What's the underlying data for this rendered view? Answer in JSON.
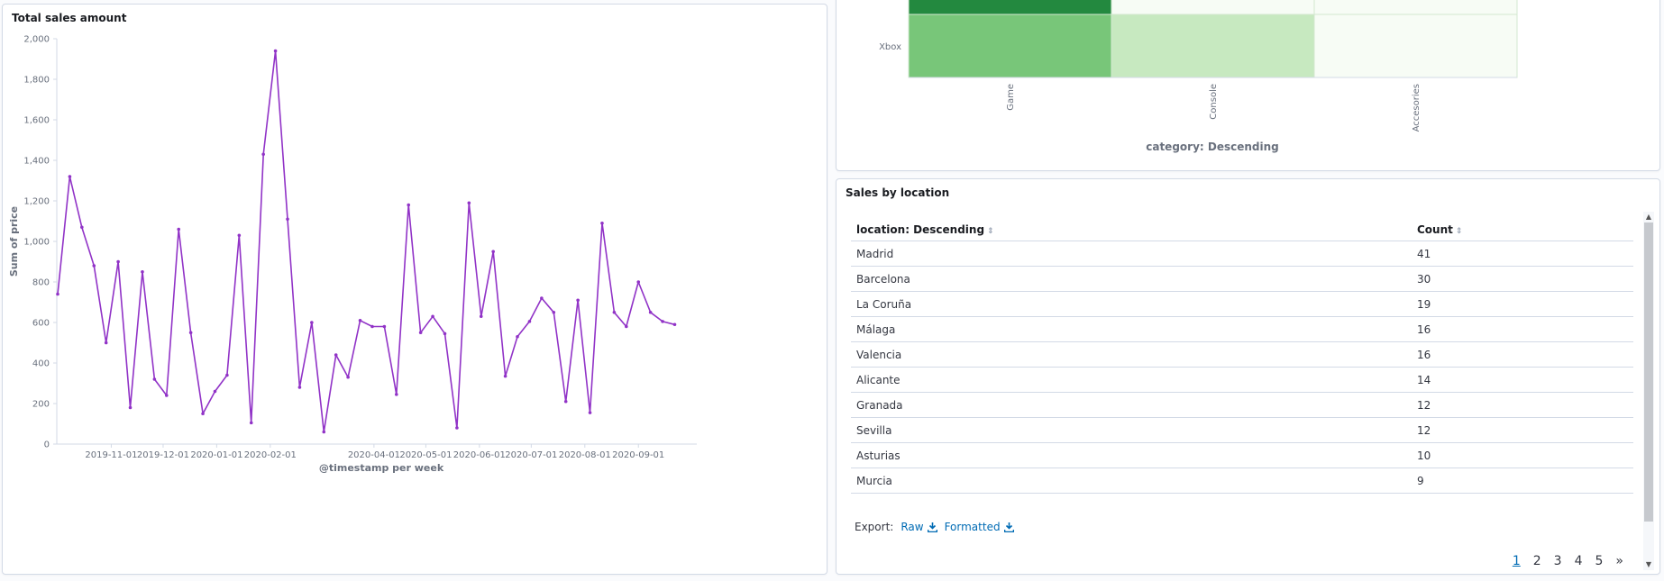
{
  "line_panel": {
    "title": "Total sales amount",
    "color": "#9133c7"
  },
  "heat_panel": {
    "row_label": "Xbox",
    "columns": [
      "Game",
      "Console",
      "Accesories"
    ],
    "axis_title": "category: Descending",
    "colors": {
      "dark": "#23893f",
      "mid": "#78c679",
      "light": "#c7e9c0",
      "lightest": "#f7fcf5"
    }
  },
  "table_panel": {
    "title": "Sales by location",
    "headers": {
      "location": "location: Descending",
      "count": "Count"
    },
    "rows": [
      {
        "location": "Madrid",
        "count": "41"
      },
      {
        "location": "Barcelona",
        "count": "30"
      },
      {
        "location": "La Coruña",
        "count": "19"
      },
      {
        "location": "Málaga",
        "count": "16"
      },
      {
        "location": "Valencia",
        "count": "16"
      },
      {
        "location": "Alicante",
        "count": "14"
      },
      {
        "location": "Granada",
        "count": "12"
      },
      {
        "location": "Sevilla",
        "count": "12"
      },
      {
        "location": "Asturias",
        "count": "10"
      },
      {
        "location": "Murcia",
        "count": "9"
      }
    ],
    "export_label": "Export:",
    "export_raw": "Raw",
    "export_formatted": "Formatted",
    "pages": [
      "1",
      "2",
      "3",
      "4",
      "5"
    ],
    "current_page": "1",
    "next": "»"
  },
  "chart_data": {
    "type": "line",
    "title": "Total sales amount",
    "xlabel": "@timestamp per week",
    "ylabel": "Sum of price",
    "ylim": [
      0,
      2000
    ],
    "yticks": [
      0,
      200,
      400,
      600,
      800,
      1000,
      1200,
      1400,
      1600,
      1800,
      2000
    ],
    "ytick_labels": [
      "0",
      "200",
      "400",
      "600",
      "800",
      "1,000",
      "1,200",
      "1,400",
      "1,600",
      "1,800",
      "2,000"
    ],
    "xticks": [
      {
        "date": "2019-11-01",
        "label": "2019-11-01"
      },
      {
        "date": "2019-12-01",
        "label": "2019-12-01"
      },
      {
        "date": "2020-01-01",
        "label": "2020-01-01"
      },
      {
        "date": "2020-02-01",
        "label": "2020-02-01"
      },
      {
        "date": "2020-04-01",
        "label": "2020-04-01"
      },
      {
        "date": "2020-05-01",
        "label": "2020-05-01"
      },
      {
        "date": "2020-06-01",
        "label": "2020-06-01"
      },
      {
        "date": "2020-07-01",
        "label": "2020-07-01"
      },
      {
        "date": "2020-08-01",
        "label": "2020-08-01"
      },
      {
        "date": "2020-09-01",
        "label": "2020-09-01"
      }
    ],
    "xlim": [
      "2019-10-01",
      "2020-09-28"
    ],
    "series": [
      {
        "color": "#9133c7",
        "points": [
          [
            "2019-10-01",
            740
          ],
          [
            "2019-10-08",
            1320
          ],
          [
            "2019-10-15",
            1070
          ],
          [
            "2019-10-22",
            880
          ],
          [
            "2019-10-29",
            500
          ],
          [
            "2019-11-05",
            900
          ],
          [
            "2019-11-12",
            180
          ],
          [
            "2019-11-19",
            850
          ],
          [
            "2019-11-26",
            320
          ],
          [
            "2019-12-03",
            240
          ],
          [
            "2019-12-10",
            1060
          ],
          [
            "2019-12-17",
            550
          ],
          [
            "2019-12-24",
            150
          ],
          [
            "2019-12-31",
            260
          ],
          [
            "2020-01-07",
            340
          ],
          [
            "2020-01-14",
            1030
          ],
          [
            "2020-01-21",
            105
          ],
          [
            "2020-01-28",
            1430
          ],
          [
            "2020-02-04",
            1940
          ],
          [
            "2020-02-11",
            1110
          ],
          [
            "2020-02-18",
            280
          ],
          [
            "2020-02-25",
            600
          ],
          [
            "2020-03-03",
            60
          ],
          [
            "2020-03-10",
            440
          ],
          [
            "2020-03-17",
            330
          ],
          [
            "2020-03-24",
            610
          ],
          [
            "2020-03-31",
            580
          ],
          [
            "2020-04-07",
            580
          ],
          [
            "2020-04-14",
            245
          ],
          [
            "2020-04-21",
            1180
          ],
          [
            "2020-04-28",
            550
          ],
          [
            "2020-05-05",
            630
          ],
          [
            "2020-05-12",
            545
          ],
          [
            "2020-05-19",
            80
          ],
          [
            "2020-05-26",
            1190
          ],
          [
            "2020-06-02",
            630
          ],
          [
            "2020-06-09",
            950
          ],
          [
            "2020-06-16",
            335
          ],
          [
            "2020-06-23",
            530
          ],
          [
            "2020-06-30",
            605
          ],
          [
            "2020-07-07",
            720
          ],
          [
            "2020-07-14",
            650
          ],
          [
            "2020-07-21",
            210
          ],
          [
            "2020-07-28",
            710
          ],
          [
            "2020-08-04",
            155
          ],
          [
            "2020-08-11",
            1090
          ],
          [
            "2020-08-18",
            650
          ],
          [
            "2020-08-25",
            580
          ],
          [
            "2020-09-01",
            800
          ],
          [
            "2020-09-08",
            650
          ],
          [
            "2020-09-15",
            605
          ],
          [
            "2020-09-22",
            590
          ]
        ]
      }
    ],
    "grid": false,
    "legend": "none"
  }
}
